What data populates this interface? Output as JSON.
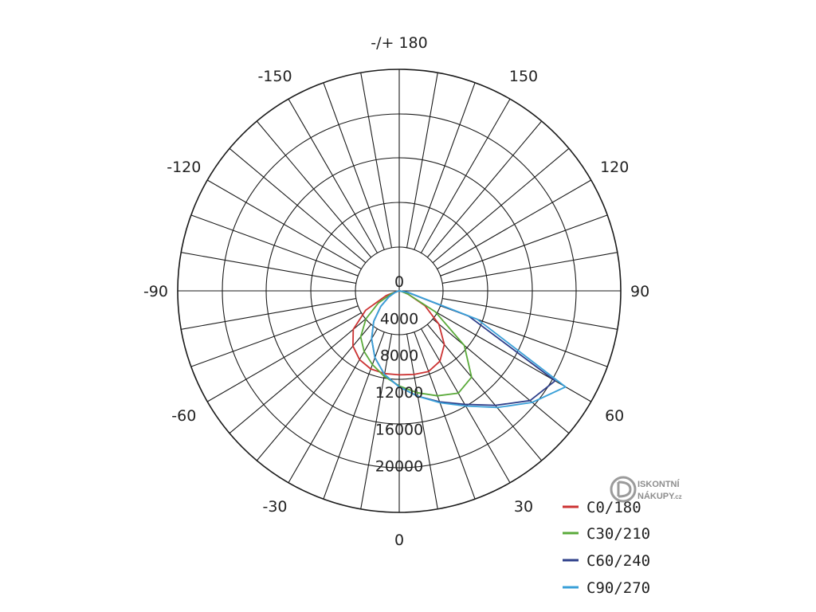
{
  "chart_data": {
    "type": "polar-line",
    "title": "",
    "angle_labels": [
      {
        "deg": 180,
        "text": "-/+ 180"
      },
      {
        "deg": -150,
        "text": "-150"
      },
      {
        "deg": 150,
        "text": "150"
      },
      {
        "deg": -120,
        "text": "-120"
      },
      {
        "deg": 120,
        "text": "120"
      },
      {
        "deg": -90,
        "text": "-90"
      },
      {
        "deg": 90,
        "text": "90"
      },
      {
        "deg": -60,
        "text": "-60"
      },
      {
        "deg": 60,
        "text": "60"
      },
      {
        "deg": -30,
        "text": "-30"
      },
      {
        "deg": 30,
        "text": "30"
      },
      {
        "deg": 0,
        "text": "0"
      }
    ],
    "radial_ticks": [
      0,
      4000,
      8000,
      12000,
      16000,
      20000
    ],
    "radial_tick_labels": [
      "0",
      "4000",
      "8000",
      "12000",
      "16000",
      "20000"
    ],
    "radial_range": [
      0,
      24000
    ],
    "angular_grid_step_deg": 10,
    "grid": true,
    "legend_position": "bottom-right",
    "series": [
      {
        "name": "C0/180",
        "color": "#cc3333",
        "angles": [
          -90,
          -80,
          -70,
          -60,
          -50,
          -40,
          -30,
          -20,
          -10,
          0,
          10,
          20,
          30,
          40,
          50,
          60,
          70,
          80,
          90
        ],
        "values": [
          0,
          200,
          1500,
          4200,
          6500,
          7800,
          8600,
          9000,
          9100,
          9100,
          9200,
          9300,
          8800,
          7600,
          5600,
          3200,
          1000,
          200,
          0
        ]
      },
      {
        "name": "C30/210",
        "color": "#5aaa3a",
        "angles": [
          -90,
          -80,
          -70,
          -60,
          -50,
          -40,
          -30,
          -20,
          -10,
          0,
          10,
          20,
          30,
          40,
          50,
          60,
          70,
          80,
          90
        ],
        "values": [
          0,
          150,
          900,
          2600,
          4700,
          6500,
          7600,
          8500,
          9400,
          10300,
          11200,
          12100,
          12800,
          12200,
          9200,
          4500,
          1000,
          150,
          0
        ]
      },
      {
        "name": "C60/240",
        "color": "#2e3f8a",
        "angles": [
          -90,
          -80,
          -70,
          -60,
          -50,
          -40,
          -30,
          -20,
          -10,
          0,
          10,
          20,
          30,
          40,
          50,
          60,
          70,
          80,
          90
        ],
        "values": [
          0,
          100,
          500,
          1300,
          2600,
          4300,
          6000,
          7700,
          9200,
          10400,
          11600,
          12800,
          14200,
          16200,
          18500,
          19500,
          8000,
          900,
          0
        ]
      },
      {
        "name": "C90/270",
        "color": "#3aa0d8",
        "angles": [
          -90,
          -80,
          -70,
          -60,
          -50,
          -40,
          -30,
          -20,
          -10,
          0,
          10,
          20,
          30,
          40,
          50,
          60,
          70,
          80,
          90
        ],
        "values": [
          0,
          100,
          500,
          1300,
          2600,
          4300,
          6000,
          7700,
          9200,
          10400,
          11600,
          12900,
          14400,
          16500,
          18800,
          20800,
          9000,
          1000,
          0
        ]
      }
    ]
  },
  "watermark": {
    "line1": "ISKONTNÍ",
    "line2": "NÁKUPY",
    "suffix": ".cz",
    "logo_icon": "d-disc-logo-icon"
  }
}
